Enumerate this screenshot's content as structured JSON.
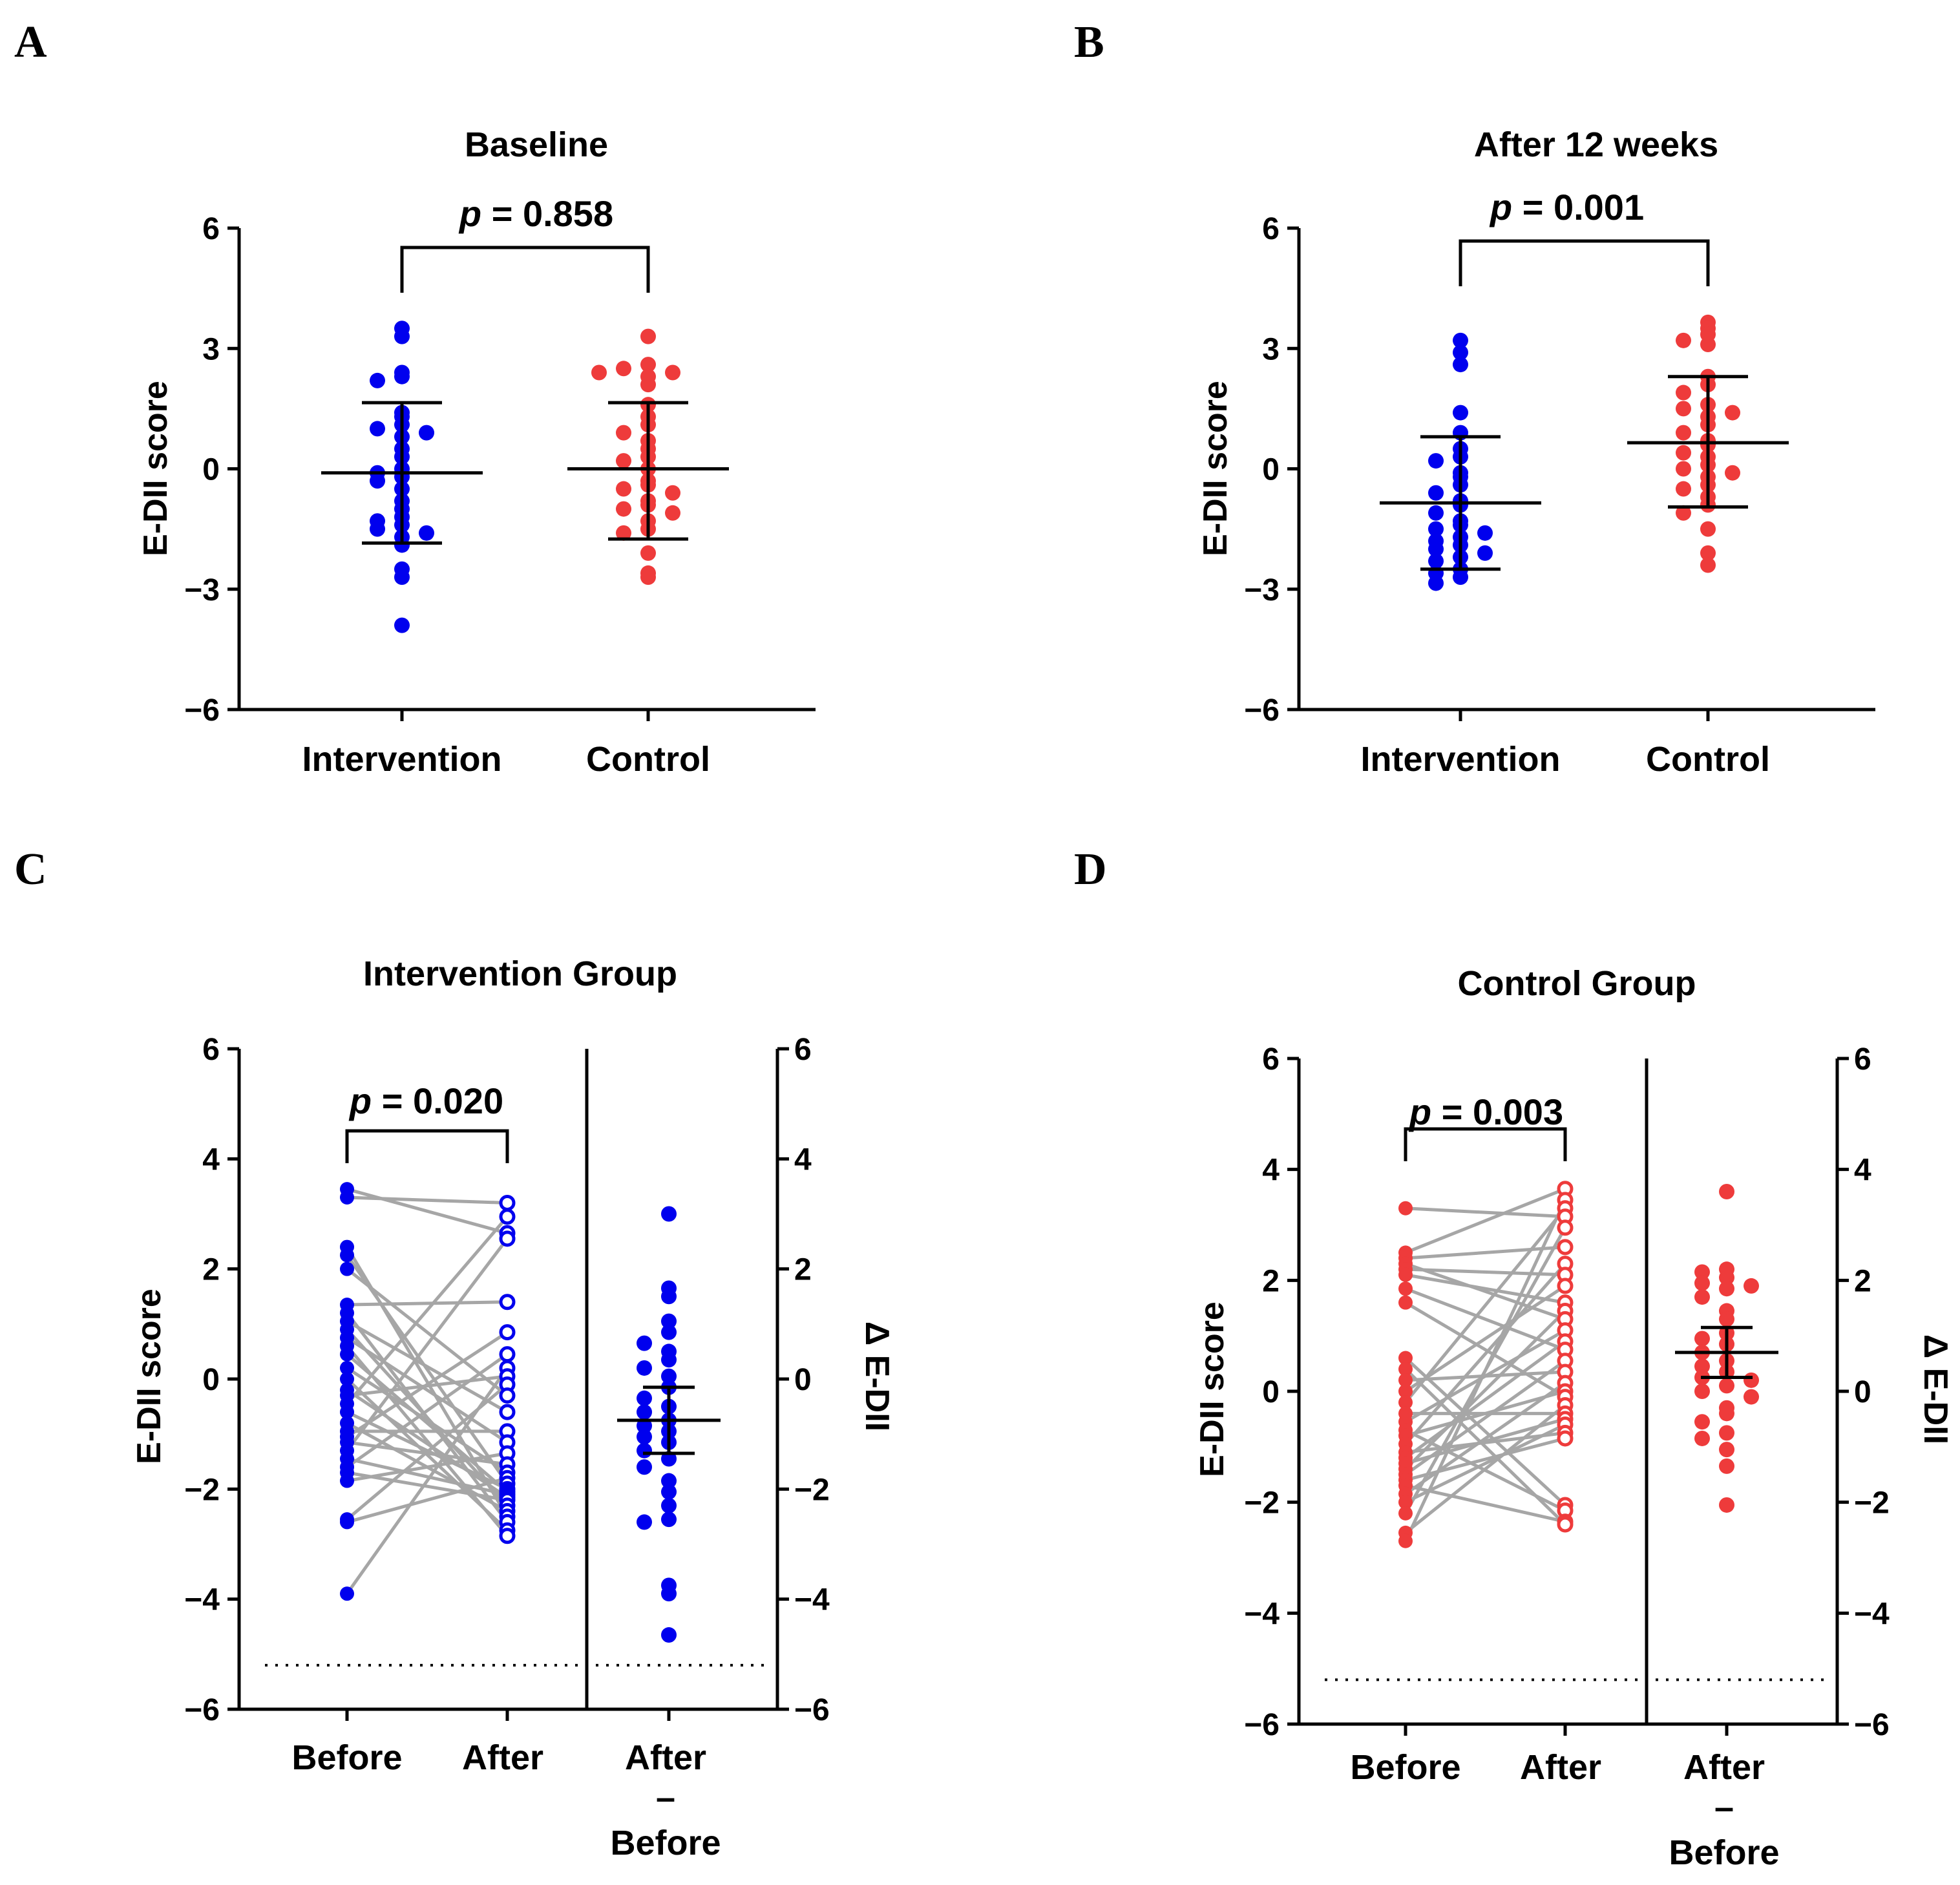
{
  "chart_data": [
    {
      "panel": "A",
      "type": "scatter",
      "title": "Baseline",
      "ylabel": "E-DII score",
      "ylim": [
        -6,
        6
      ],
      "yticks": [
        6,
        3,
        0,
        -3,
        -6
      ],
      "ytick_labels": [
        "6",
        "3",
        "0",
        "−3",
        "−6"
      ],
      "categories": [
        "Intervention",
        "Control"
      ],
      "p_label": "p",
      "p_value": "= 0.858",
      "colors": [
        "#0000ee",
        "#ee3b3b"
      ],
      "series": [
        {
          "name": "Intervention",
          "mean": -0.1,
          "sd_low": -1.85,
          "sd_high": 1.65,
          "values": [
            3.5,
            3.3,
            2.4,
            2.3,
            2.2,
            1.4,
            1.3,
            1.1,
            1.0,
            0.9,
            0.8,
            0.5,
            0.3,
            0.0,
            -0.1,
            -0.2,
            -0.3,
            -0.5,
            -0.8,
            -1.0,
            -1.2,
            -1.3,
            -1.4,
            -1.5,
            -1.6,
            -1.7,
            -1.9,
            -2.5,
            -2.7,
            -3.9
          ]
        },
        {
          "name": "Control",
          "mean": 0.0,
          "sd_low": -1.75,
          "sd_high": 1.65,
          "values": [
            3.3,
            2.6,
            2.5,
            2.4,
            2.4,
            2.3,
            2.1,
            1.6,
            1.3,
            1.1,
            0.9,
            0.7,
            0.5,
            0.3,
            0.2,
            0.0,
            -0.3,
            -0.4,
            -0.5,
            -0.6,
            -0.8,
            -0.9,
            -1.0,
            -1.1,
            -1.3,
            -1.5,
            -1.6,
            -2.1,
            -2.6,
            -2.7
          ]
        }
      ]
    },
    {
      "panel": "B",
      "type": "scatter",
      "title": "After 12 weeks",
      "ylabel": "E-DII score",
      "ylim": [
        -6,
        6
      ],
      "yticks": [
        6,
        3,
        0,
        -3,
        -6
      ],
      "ytick_labels": [
        "6",
        "3",
        "0",
        "−3",
        "−6"
      ],
      "categories": [
        "Intervention",
        "Control"
      ],
      "p_label": "p",
      "p_value": "= 0.001",
      "colors": [
        "#0000ee",
        "#ee3b3b"
      ],
      "series": [
        {
          "name": "Intervention",
          "mean": -0.85,
          "sd_low": -2.5,
          "sd_high": 0.8,
          "values": [
            3.2,
            2.9,
            2.6,
            1.4,
            0.9,
            0.5,
            0.3,
            0.2,
            -0.1,
            -0.2,
            -0.4,
            -0.6,
            -0.8,
            -0.9,
            -1.1,
            -1.3,
            -1.4,
            -1.5,
            -1.6,
            -1.7,
            -1.8,
            -1.9,
            -2.0,
            -2.1,
            -2.2,
            -2.3,
            -2.5,
            -2.6,
            -2.7,
            -2.85
          ]
        },
        {
          "name": "Control",
          "mean": 0.65,
          "sd_low": -0.95,
          "sd_high": 2.3,
          "values": [
            3.65,
            3.5,
            3.35,
            3.2,
            3.1,
            2.3,
            2.1,
            1.9,
            1.6,
            1.5,
            1.4,
            1.3,
            1.1,
            0.9,
            0.7,
            0.6,
            0.4,
            0.3,
            0.1,
            0.0,
            -0.1,
            -0.2,
            -0.4,
            -0.5,
            -0.7,
            -0.9,
            -1.1,
            -1.5,
            -2.1,
            -2.4
          ]
        }
      ]
    },
    {
      "panel": "C",
      "type": "scatter",
      "title": "Intervention Group",
      "ylabel": "E-DII score",
      "ylabel_right": "Δ E-DII",
      "ylim": [
        -6,
        6
      ],
      "yticks": [
        6,
        4,
        2,
        0,
        -2,
        -4,
        -6
      ],
      "ytick_labels": [
        "6",
        "4",
        "2",
        "0",
        "−2",
        "−4",
        "−6"
      ],
      "categories": [
        "Before",
        "After"
      ],
      "diff_label": [
        "After",
        "–",
        "Before"
      ],
      "p_label": "p",
      "p_value": "= 0.020",
      "color": "#0000ee",
      "baseline_dotted": -5.2,
      "before": [
        3.45,
        3.3,
        2.4,
        2.25,
        2.0,
        1.35,
        1.2,
        1.05,
        0.9,
        0.75,
        0.6,
        0.45,
        0.2,
        0.0,
        -0.2,
        -0.3,
        -0.45,
        -0.6,
        -0.8,
        -0.95,
        -1.05,
        -1.15,
        -1.3,
        -1.45,
        -1.6,
        -1.7,
        -1.85,
        -2.55,
        -2.6,
        -3.9
      ],
      "after": [
        3.2,
        2.95,
        2.65,
        2.55,
        1.4,
        0.85,
        0.45,
        0.2,
        0.05,
        -0.1,
        -0.3,
        -0.6,
        -0.95,
        -1.15,
        -1.35,
        -1.55,
        -1.7,
        -1.8,
        -1.9,
        -2.0,
        -2.05,
        -2.1,
        -2.15,
        -2.2,
        -2.3,
        -2.4,
        -2.5,
        -2.6,
        -2.75,
        -2.85
      ],
      "pairs": [
        [
          0,
          2
        ],
        [
          1,
          0
        ],
        [
          2,
          26
        ],
        [
          3,
          18
        ],
        [
          4,
          10
        ],
        [
          5,
          4
        ],
        [
          6,
          27
        ],
        [
          7,
          11
        ],
        [
          8,
          24
        ],
        [
          9,
          13
        ],
        [
          10,
          29
        ],
        [
          11,
          20
        ],
        [
          12,
          16
        ],
        [
          13,
          28
        ],
        [
          14,
          22
        ],
        [
          15,
          8
        ],
        [
          16,
          1
        ],
        [
          17,
          19
        ],
        [
          18,
          25
        ],
        [
          19,
          12
        ],
        [
          20,
          5
        ],
        [
          21,
          15
        ],
        [
          22,
          3
        ],
        [
          23,
          21
        ],
        [
          24,
          6
        ],
        [
          25,
          23
        ],
        [
          26,
          14
        ],
        [
          27,
          9
        ],
        [
          28,
          17
        ],
        [
          29,
          7
        ]
      ],
      "delta": {
        "mean": -0.75,
        "ci_low": -1.35,
        "ci_high": -0.15,
        "values": [
          3.0,
          1.65,
          1.5,
          1.05,
          0.85,
          0.65,
          0.5,
          0.35,
          0.2,
          0.05,
          -0.15,
          -0.35,
          -0.5,
          -0.6,
          -0.75,
          -0.85,
          -0.95,
          -1.05,
          -1.15,
          -1.3,
          -1.45,
          -1.6,
          -1.85,
          -2.05,
          -2.3,
          -2.55,
          -2.6,
          -3.75,
          -3.9,
          -4.65
        ]
      }
    },
    {
      "panel": "D",
      "type": "scatter",
      "title": "Control Group",
      "ylabel": "E-DII score",
      "ylabel_right": "Δ E-DII",
      "ylim": [
        -6,
        6
      ],
      "yticks": [
        6,
        4,
        2,
        0,
        -2,
        -4,
        -6
      ],
      "ytick_labels": [
        "6",
        "4",
        "2",
        "0",
        "−2",
        "−4",
        "−6"
      ],
      "categories": [
        "Before",
        "After"
      ],
      "diff_label": [
        "After",
        "–",
        "Before"
      ],
      "p_label": "p",
      "p_value": "= 0.003",
      "color": "#ee3b3b",
      "baseline_dotted": -5.2,
      "before": [
        3.3,
        2.5,
        2.4,
        2.3,
        2.2,
        2.1,
        1.85,
        1.6,
        0.6,
        0.4,
        0.2,
        0.0,
        -0.2,
        -0.4,
        -0.55,
        -0.7,
        -0.8,
        -0.95,
        -1.1,
        -1.2,
        -1.3,
        -1.4,
        -1.5,
        -1.6,
        -1.7,
        -1.85,
        -2.0,
        -2.2,
        -2.55,
        -2.7
      ],
      "after": [
        3.65,
        3.45,
        3.3,
        3.15,
        2.95,
        2.6,
        2.3,
        2.1,
        1.9,
        1.6,
        1.45,
        1.3,
        1.1,
        0.9,
        0.75,
        0.55,
        0.35,
        0.15,
        0.0,
        -0.1,
        -0.25,
        -0.4,
        -0.5,
        -0.6,
        -0.75,
        -0.85,
        -2.05,
        -2.15,
        -2.35,
        -2.4
      ],
      "pairs": [
        [
          0,
          3
        ],
        [
          1,
          0
        ],
        [
          2,
          5
        ],
        [
          3,
          11
        ],
        [
          4,
          7
        ],
        [
          5,
          9
        ],
        [
          6,
          14
        ],
        [
          7,
          19
        ],
        [
          8,
          26
        ],
        [
          9,
          29
        ],
        [
          10,
          16
        ],
        [
          11,
          8
        ],
        [
          12,
          2
        ],
        [
          13,
          21
        ],
        [
          14,
          12
        ],
        [
          15,
          27
        ],
        [
          16,
          18
        ],
        [
          17,
          6
        ],
        [
          18,
          24
        ],
        [
          19,
          13
        ],
        [
          20,
          22
        ],
        [
          21,
          10
        ],
        [
          22,
          15
        ],
        [
          23,
          25
        ],
        [
          24,
          28
        ],
        [
          25,
          17
        ],
        [
          26,
          23
        ],
        [
          27,
          4
        ],
        [
          28,
          20
        ],
        [
          29,
          1
        ]
      ],
      "delta": {
        "mean": 0.7,
        "ci_low": 0.25,
        "ci_high": 1.15,
        "values": [
          3.6,
          2.2,
          2.15,
          2.05,
          1.95,
          1.9,
          1.85,
          1.7,
          1.45,
          1.3,
          1.05,
          0.95,
          0.85,
          0.7,
          0.55,
          0.45,
          0.35,
          0.25,
          0.2,
          0.1,
          0.0,
          -0.1,
          -0.3,
          -0.4,
          -0.55,
          -0.75,
          -0.85,
          -1.05,
          -1.35,
          -2.05
        ]
      }
    }
  ],
  "panel_letters": [
    "A",
    "B",
    "C",
    "D"
  ]
}
